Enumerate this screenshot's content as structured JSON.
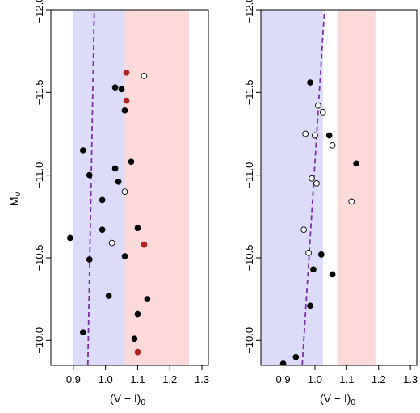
{
  "colors": {
    "blue_band": "#dcdcfa",
    "red_band": "#fcdada",
    "dashed_line": "#7a2fa8",
    "filled_point": "#000000",
    "red_point": "#b22222",
    "open_point_stroke": "#000000"
  },
  "ylabel": {
    "main": "M",
    "sub": "V"
  },
  "xlabel": {
    "main": "(V − I)",
    "sub": "0"
  },
  "chart_data": [
    {
      "type": "scatter",
      "title": "",
      "xlim": [
        0.83,
        1.32
      ],
      "ylim": [
        -12.0,
        -9.85
      ],
      "y_reversed": true,
      "xticks": [
        0.9,
        1.0,
        1.1,
        1.2,
        1.3
      ],
      "xtick_labels": [
        "0.9",
        "1.0",
        "1.1",
        "1.2",
        "1.3"
      ],
      "yticks": [
        -12.0,
        -11.5,
        -11.0,
        -10.5,
        -10.0
      ],
      "ytick_labels": [
        "−12.0",
        "−11.5",
        "−11.0",
        "−10.5",
        "−10.0"
      ],
      "bands": [
        {
          "color": "blue",
          "x": [
            0.9,
            1.06
          ]
        },
        {
          "color": "red",
          "x": [
            1.06,
            1.26
          ]
        }
      ],
      "dashed_line": {
        "x": [
          0.945,
          0.965
        ],
        "y": [
          -9.85,
          -12.0
        ]
      },
      "series": [
        {
          "marker": "filled_black",
          "points": [
            [
              0.93,
              -11.15
            ],
            [
              0.95,
              -11.0
            ],
            [
              0.89,
              -10.62
            ],
            [
              0.95,
              -10.49
            ],
            [
              0.99,
              -10.85
            ],
            [
              0.99,
              -10.67
            ],
            [
              1.01,
              -10.27
            ],
            [
              0.93,
              -10.05
            ],
            [
              1.03,
              -11.53
            ],
            [
              1.05,
              -11.52
            ],
            [
              1.06,
              -11.39
            ],
            [
              1.08,
              -11.08
            ],
            [
              1.03,
              -11.04
            ],
            [
              1.04,
              -10.96
            ],
            [
              1.06,
              -10.51
            ],
            [
              1.1,
              -10.68
            ],
            [
              1.13,
              -10.25
            ],
            [
              1.1,
              -10.16
            ],
            [
              1.09,
              -10.01
            ]
          ]
        },
        {
          "marker": "filled_red",
          "points": [
            [
              1.065,
              -11.62
            ],
            [
              1.065,
              -11.45
            ],
            [
              1.12,
              -10.58
            ],
            [
              1.1,
              -9.93
            ]
          ]
        },
        {
          "marker": "open",
          "points": [
            [
              1.12,
              -11.6
            ],
            [
              1.06,
              -10.9
            ],
            [
              1.02,
              -10.59
            ]
          ]
        }
      ]
    },
    {
      "type": "scatter",
      "title": "",
      "xlim": [
        0.83,
        1.32
      ],
      "ylim": [
        -12.0,
        -9.85
      ],
      "y_reversed": true,
      "xticks": [
        0.9,
        1.0,
        1.1,
        1.2,
        1.3
      ],
      "xtick_labels": [
        "0.9",
        "1.0",
        "1.1",
        "1.2",
        "1.3"
      ],
      "yticks": [
        -12.0,
        -11.5,
        -11.0,
        -10.5,
        -10.0
      ],
      "ytick_labels": [
        "−12.0",
        "−11.5",
        "−11.0",
        "−10.5",
        "−10.0"
      ],
      "bands": [
        {
          "color": "blue",
          "x": [
            0.83,
            1.025
          ]
        },
        {
          "color": "red",
          "x": [
            1.07,
            1.19
          ]
        }
      ],
      "dashed_line": {
        "x": [
          0.96,
          1.03
        ],
        "y": [
          -9.85,
          -12.0
        ]
      },
      "series": [
        {
          "marker": "filled_black",
          "points": [
            [
              0.985,
              -11.56
            ],
            [
              1.0,
              -11.24
            ],
            [
              1.045,
              -11.24
            ],
            [
              1.13,
              -11.07
            ],
            [
              1.02,
              -10.52
            ],
            [
              0.995,
              -10.43
            ],
            [
              1.055,
              -10.4
            ],
            [
              0.985,
              -10.21
            ],
            [
              0.94,
              -9.9
            ],
            [
              0.9,
              -9.86
            ]
          ]
        },
        {
          "marker": "open",
          "points": [
            [
              1.01,
              -11.42
            ],
            [
              1.025,
              -11.38
            ],
            [
              0.97,
              -11.25
            ],
            [
              1.0,
              -11.24
            ],
            [
              1.055,
              -11.18
            ],
            [
              0.99,
              -10.98
            ],
            [
              1.005,
              -10.95
            ],
            [
              1.115,
              -10.84
            ],
            [
              0.965,
              -10.67
            ],
            [
              0.98,
              -10.53
            ]
          ]
        }
      ]
    }
  ]
}
